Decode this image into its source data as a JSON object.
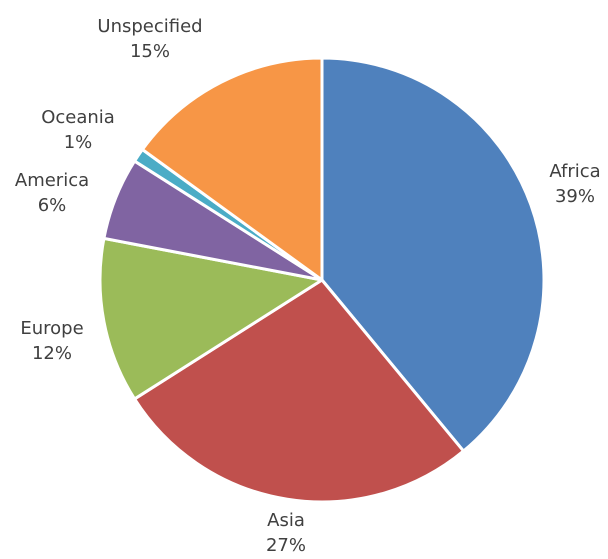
{
  "chart_data": {
    "type": "pie",
    "slices": [
      {
        "label": "Africa",
        "value": 39,
        "pct_label": "39%",
        "color": "#4F81BD"
      },
      {
        "label": "Asia",
        "value": 27,
        "pct_label": "27%",
        "color": "#C0504D"
      },
      {
        "label": "Europe",
        "value": 12,
        "pct_label": "12%",
        "color": "#9BBB59"
      },
      {
        "label": "America",
        "value": 6,
        "pct_label": "6%",
        "color": "#8064A2"
      },
      {
        "label": "Oceania",
        "value": 1,
        "pct_label": "1%",
        "color": "#4BACC6"
      },
      {
        "label": "Unspecified",
        "value": 15,
        "pct_label": "15%",
        "color": "#F79646"
      }
    ],
    "start_angle": "12 o'clock",
    "direction": "clockwise",
    "legend": "none"
  }
}
